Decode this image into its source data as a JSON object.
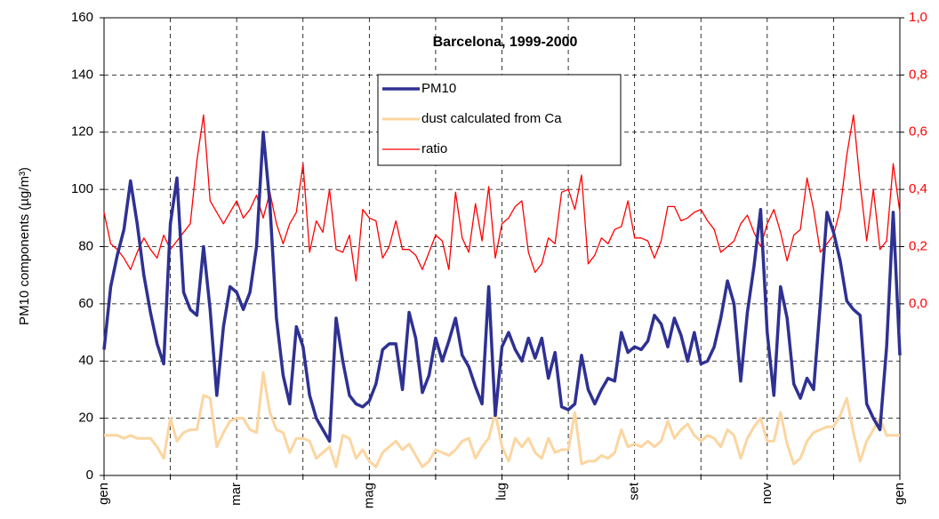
{
  "chart_data": {
    "type": "line",
    "title": "Barcelona, 1999-2000",
    "y_label": "PM10 components (µg/m³)",
    "categories": [
      "gen",
      null,
      null,
      null,
      null,
      null,
      null,
      null,
      null,
      null,
      null,
      null,
      null,
      null,
      null,
      null,
      null,
      null,
      null,
      null,
      "mar",
      null,
      null,
      null,
      null,
      null,
      null,
      null,
      null,
      null,
      null,
      null,
      null,
      null,
      null,
      null,
      null,
      null,
      null,
      null,
      "mag",
      null,
      null,
      null,
      null,
      null,
      null,
      null,
      null,
      null,
      null,
      null,
      null,
      null,
      null,
      null,
      null,
      null,
      null,
      null,
      "lug",
      null,
      null,
      null,
      null,
      null,
      null,
      null,
      null,
      null,
      null,
      null,
      null,
      null,
      null,
      null,
      null,
      null,
      null,
      null,
      "set",
      null,
      null,
      null,
      null,
      null,
      null,
      null,
      null,
      null,
      null,
      null,
      null,
      null,
      null,
      null,
      null,
      null,
      null,
      null,
      "nov",
      null,
      null,
      null,
      null,
      null,
      null,
      null,
      null,
      null,
      null,
      null,
      null,
      null,
      null,
      null,
      null,
      null,
      null,
      null,
      "gen"
    ],
    "series": [
      {
        "name": "PM10",
        "color": "#2e3192",
        "values": [
          44,
          66,
          77,
          86,
          103,
          88,
          70,
          57,
          46,
          39,
          88,
          104,
          64,
          58,
          56,
          80,
          58,
          28,
          52,
          66,
          64,
          58,
          64,
          80,
          120,
          95,
          55,
          35,
          25,
          52,
          45,
          28,
          20,
          16,
          12,
          55,
          40,
          28,
          25,
          24,
          26,
          32,
          44,
          46,
          46,
          30,
          57,
          48,
          29,
          35,
          48,
          40,
          47,
          55,
          42,
          38,
          31,
          25,
          66,
          21,
          45,
          50,
          44,
          40,
          48,
          41,
          48,
          34,
          43,
          24,
          23,
          25,
          42,
          30,
          25,
          30,
          34,
          33,
          50,
          43,
          45,
          44,
          47,
          56,
          53,
          45,
          55,
          49,
          40,
          50,
          39,
          40,
          45,
          55,
          68,
          60,
          33,
          57,
          73,
          93,
          50,
          28,
          66,
          55,
          32,
          27,
          34,
          30,
          60,
          92,
          85,
          75,
          61,
          58,
          56,
          25,
          20,
          16,
          45,
          92,
          42
        ]
      },
      {
        "name": "dust calculated from Ca",
        "color": "#fcd5a0",
        "values": [
          14,
          14,
          14,
          13,
          14,
          13,
          13,
          13,
          10,
          6,
          20,
          12,
          15,
          16,
          16,
          28,
          27,
          10,
          15,
          19,
          20,
          20,
          16,
          15,
          36,
          22,
          16,
          15,
          8,
          13,
          13,
          12,
          6,
          8,
          10,
          3,
          14,
          13,
          6,
          9,
          5,
          3,
          8,
          10,
          12,
          9,
          11,
          7,
          3,
          5,
          9,
          8,
          7,
          9,
          12,
          13,
          6,
          10,
          13,
          22,
          10,
          5,
          13,
          10,
          13,
          8,
          6,
          13,
          8,
          9,
          9,
          22,
          4,
          5,
          5,
          7,
          6,
          8,
          16,
          10,
          11,
          10,
          12,
          10,
          12,
          19,
          13,
          16,
          18,
          14,
          12,
          14,
          13,
          10,
          16,
          14,
          6,
          13,
          17,
          20,
          12,
          12,
          22,
          11,
          4,
          6,
          12,
          15,
          16,
          17,
          17,
          21,
          27,
          15,
          5,
          12,
          16,
          20,
          14,
          14,
          14
        ]
      },
      {
        "name": "ratio",
        "color": "#ff0000",
        "axis": "y2",
        "values": [
          0.32,
          0.21,
          0.19,
          0.16,
          0.12,
          0.18,
          0.23,
          0.19,
          0.16,
          0.24,
          0.19,
          0.22,
          0.25,
          0.28,
          0.5,
          0.66,
          0.36,
          0.32,
          0.28,
          0.32,
          0.36,
          0.3,
          0.33,
          0.38,
          0.3,
          0.39,
          0.28,
          0.21,
          0.28,
          0.32,
          0.49,
          0.18,
          0.29,
          0.25,
          0.4,
          0.19,
          0.18,
          0.24,
          0.08,
          0.33,
          0.3,
          0.29,
          0.16,
          0.2,
          0.29,
          0.19,
          0.19,
          0.17,
          0.12,
          0.18,
          0.24,
          0.22,
          0.12,
          0.39,
          0.23,
          0.18,
          0.35,
          0.22,
          0.41,
          0.16,
          0.28,
          0.3,
          0.34,
          0.36,
          0.18,
          0.11,
          0.14,
          0.23,
          0.21,
          0.39,
          0.4,
          0.33,
          0.45,
          0.14,
          0.17,
          0.23,
          0.21,
          0.26,
          0.27,
          0.36,
          0.23,
          0.23,
          0.22,
          0.16,
          0.22,
          0.34,
          0.34,
          0.29,
          0.3,
          0.32,
          0.33,
          0.29,
          0.26,
          0.18,
          0.2,
          0.22,
          0.28,
          0.31,
          0.25,
          0.2,
          0.28,
          0.33,
          0.25,
          0.15,
          0.24,
          0.26,
          0.44,
          0.33,
          0.18,
          0.21,
          0.24,
          0.33,
          0.52,
          0.66,
          0.42,
          0.22,
          0.4,
          0.19,
          0.22,
          0.49,
          0.32
        ]
      }
    ],
    "ylim": [
      0,
      160
    ],
    "yticks": [
      0,
      20,
      40,
      60,
      80,
      100,
      120,
      140,
      160
    ],
    "y2lim": [
      -0.6,
      1.0
    ],
    "y2ticks": [
      {
        "value": 0,
        "label": "0,0"
      },
      {
        "value": 0.2,
        "label": "0,2"
      },
      {
        "value": 0.4,
        "label": "0,4"
      },
      {
        "value": 0.6,
        "label": "0,6"
      },
      {
        "value": 0.8,
        "label": "0,8"
      },
      {
        "value": 1.0,
        "label": "1,0"
      }
    ],
    "grid": true
  }
}
